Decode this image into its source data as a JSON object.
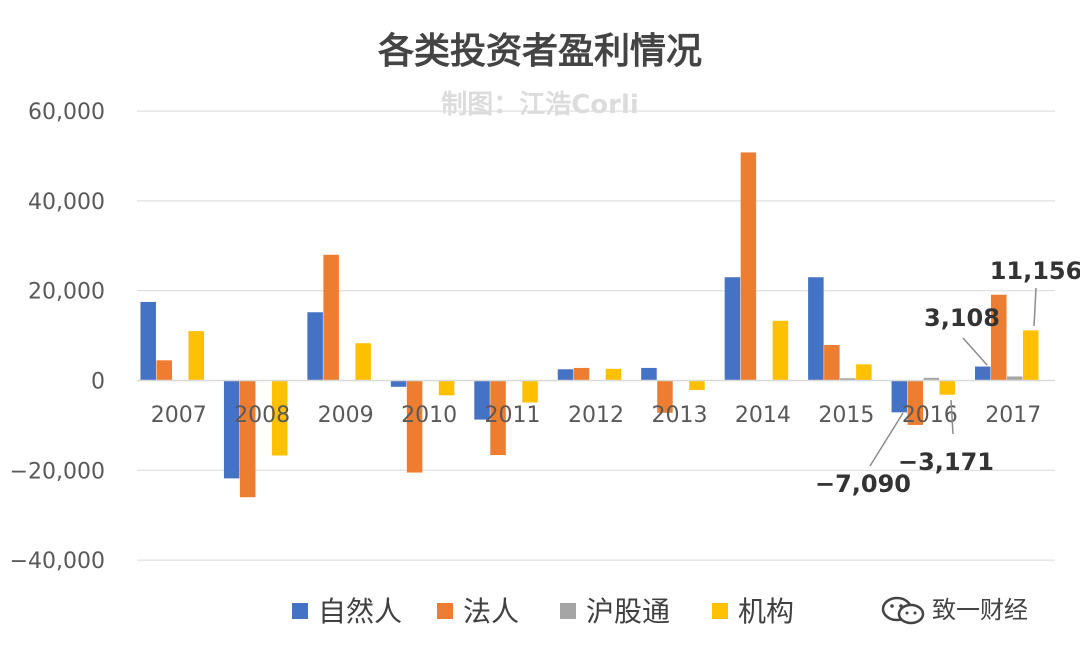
{
  "chart_data": {
    "type": "bar",
    "title": "各类投资者盈利情况",
    "watermark": "制图：江浩Corli",
    "categories": [
      "2007",
      "2008",
      "2009",
      "2010",
      "2011",
      "2012",
      "2013",
      "2014",
      "2015",
      "2016",
      "2017"
    ],
    "series": [
      {
        "name": "自然人",
        "color": "#4472c4",
        "values": [
          17500,
          -21800,
          15200,
          -1400,
          -8700,
          2500,
          2800,
          23000,
          23000,
          -7090,
          3108
        ]
      },
      {
        "name": "法人",
        "color": "#ed7d31",
        "values": [
          4500,
          -26000,
          28000,
          -20500,
          -16600,
          2800,
          -7200,
          50800,
          7900,
          -9900,
          19100
        ]
      },
      {
        "name": "沪股通",
        "color": "#a5a5a5",
        "values": [
          0,
          0,
          0,
          0,
          0,
          0,
          0,
          0,
          500,
          600,
          900
        ]
      },
      {
        "name": "机构",
        "color": "#ffc000",
        "values": [
          11000,
          -16700,
          8300,
          -3300,
          -4900,
          2600,
          -2100,
          13300,
          3600,
          -3171,
          11156
        ]
      }
    ],
    "ylim": [
      -40000,
      60000
    ],
    "yticks": [
      "60,000",
      "40,000",
      "20,000",
      "0",
      "−20,000",
      "−40,000"
    ],
    "ytick_values": [
      60000,
      40000,
      20000,
      0,
      -20000,
      -40000
    ],
    "grid": true,
    "legend_position": "bottom",
    "annotations": [
      {
        "text": "11,156",
        "series": 3,
        "category": 10
      },
      {
        "text": "3,108",
        "series": 0,
        "category": 10
      },
      {
        "text": "−7,090",
        "series": 0,
        "category": 9
      },
      {
        "text": "−3,171",
        "series": 3,
        "category": 9
      }
    ]
  },
  "brand": {
    "label": "致一财经",
    "icon": "wechat-icon"
  }
}
